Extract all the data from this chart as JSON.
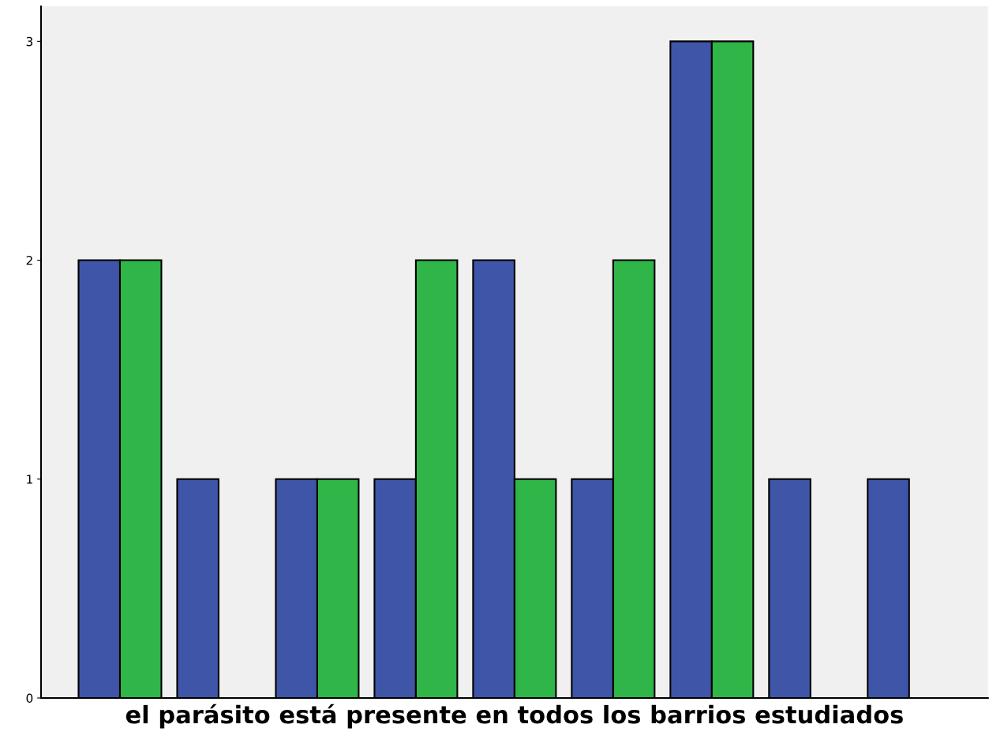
{
  "chart_data": {
    "type": "bar",
    "xlabel": "el parásito está presente en todos los barrios estudiados",
    "categories": [
      null,
      null,
      null,
      null,
      null,
      null,
      null,
      null,
      null
    ],
    "series": [
      {
        "color": "#3f56a8",
        "values": [
          2,
          1,
          1,
          1,
          2,
          1,
          3,
          1,
          1
        ]
      },
      {
        "color": "#2fb548",
        "values": [
          2,
          null,
          1,
          2,
          1,
          2,
          3,
          null,
          null
        ]
      }
    ],
    "ylim": [
      0,
      3.16
    ],
    "yticks": [
      0,
      1,
      2,
      3
    ],
    "grid": false
  }
}
